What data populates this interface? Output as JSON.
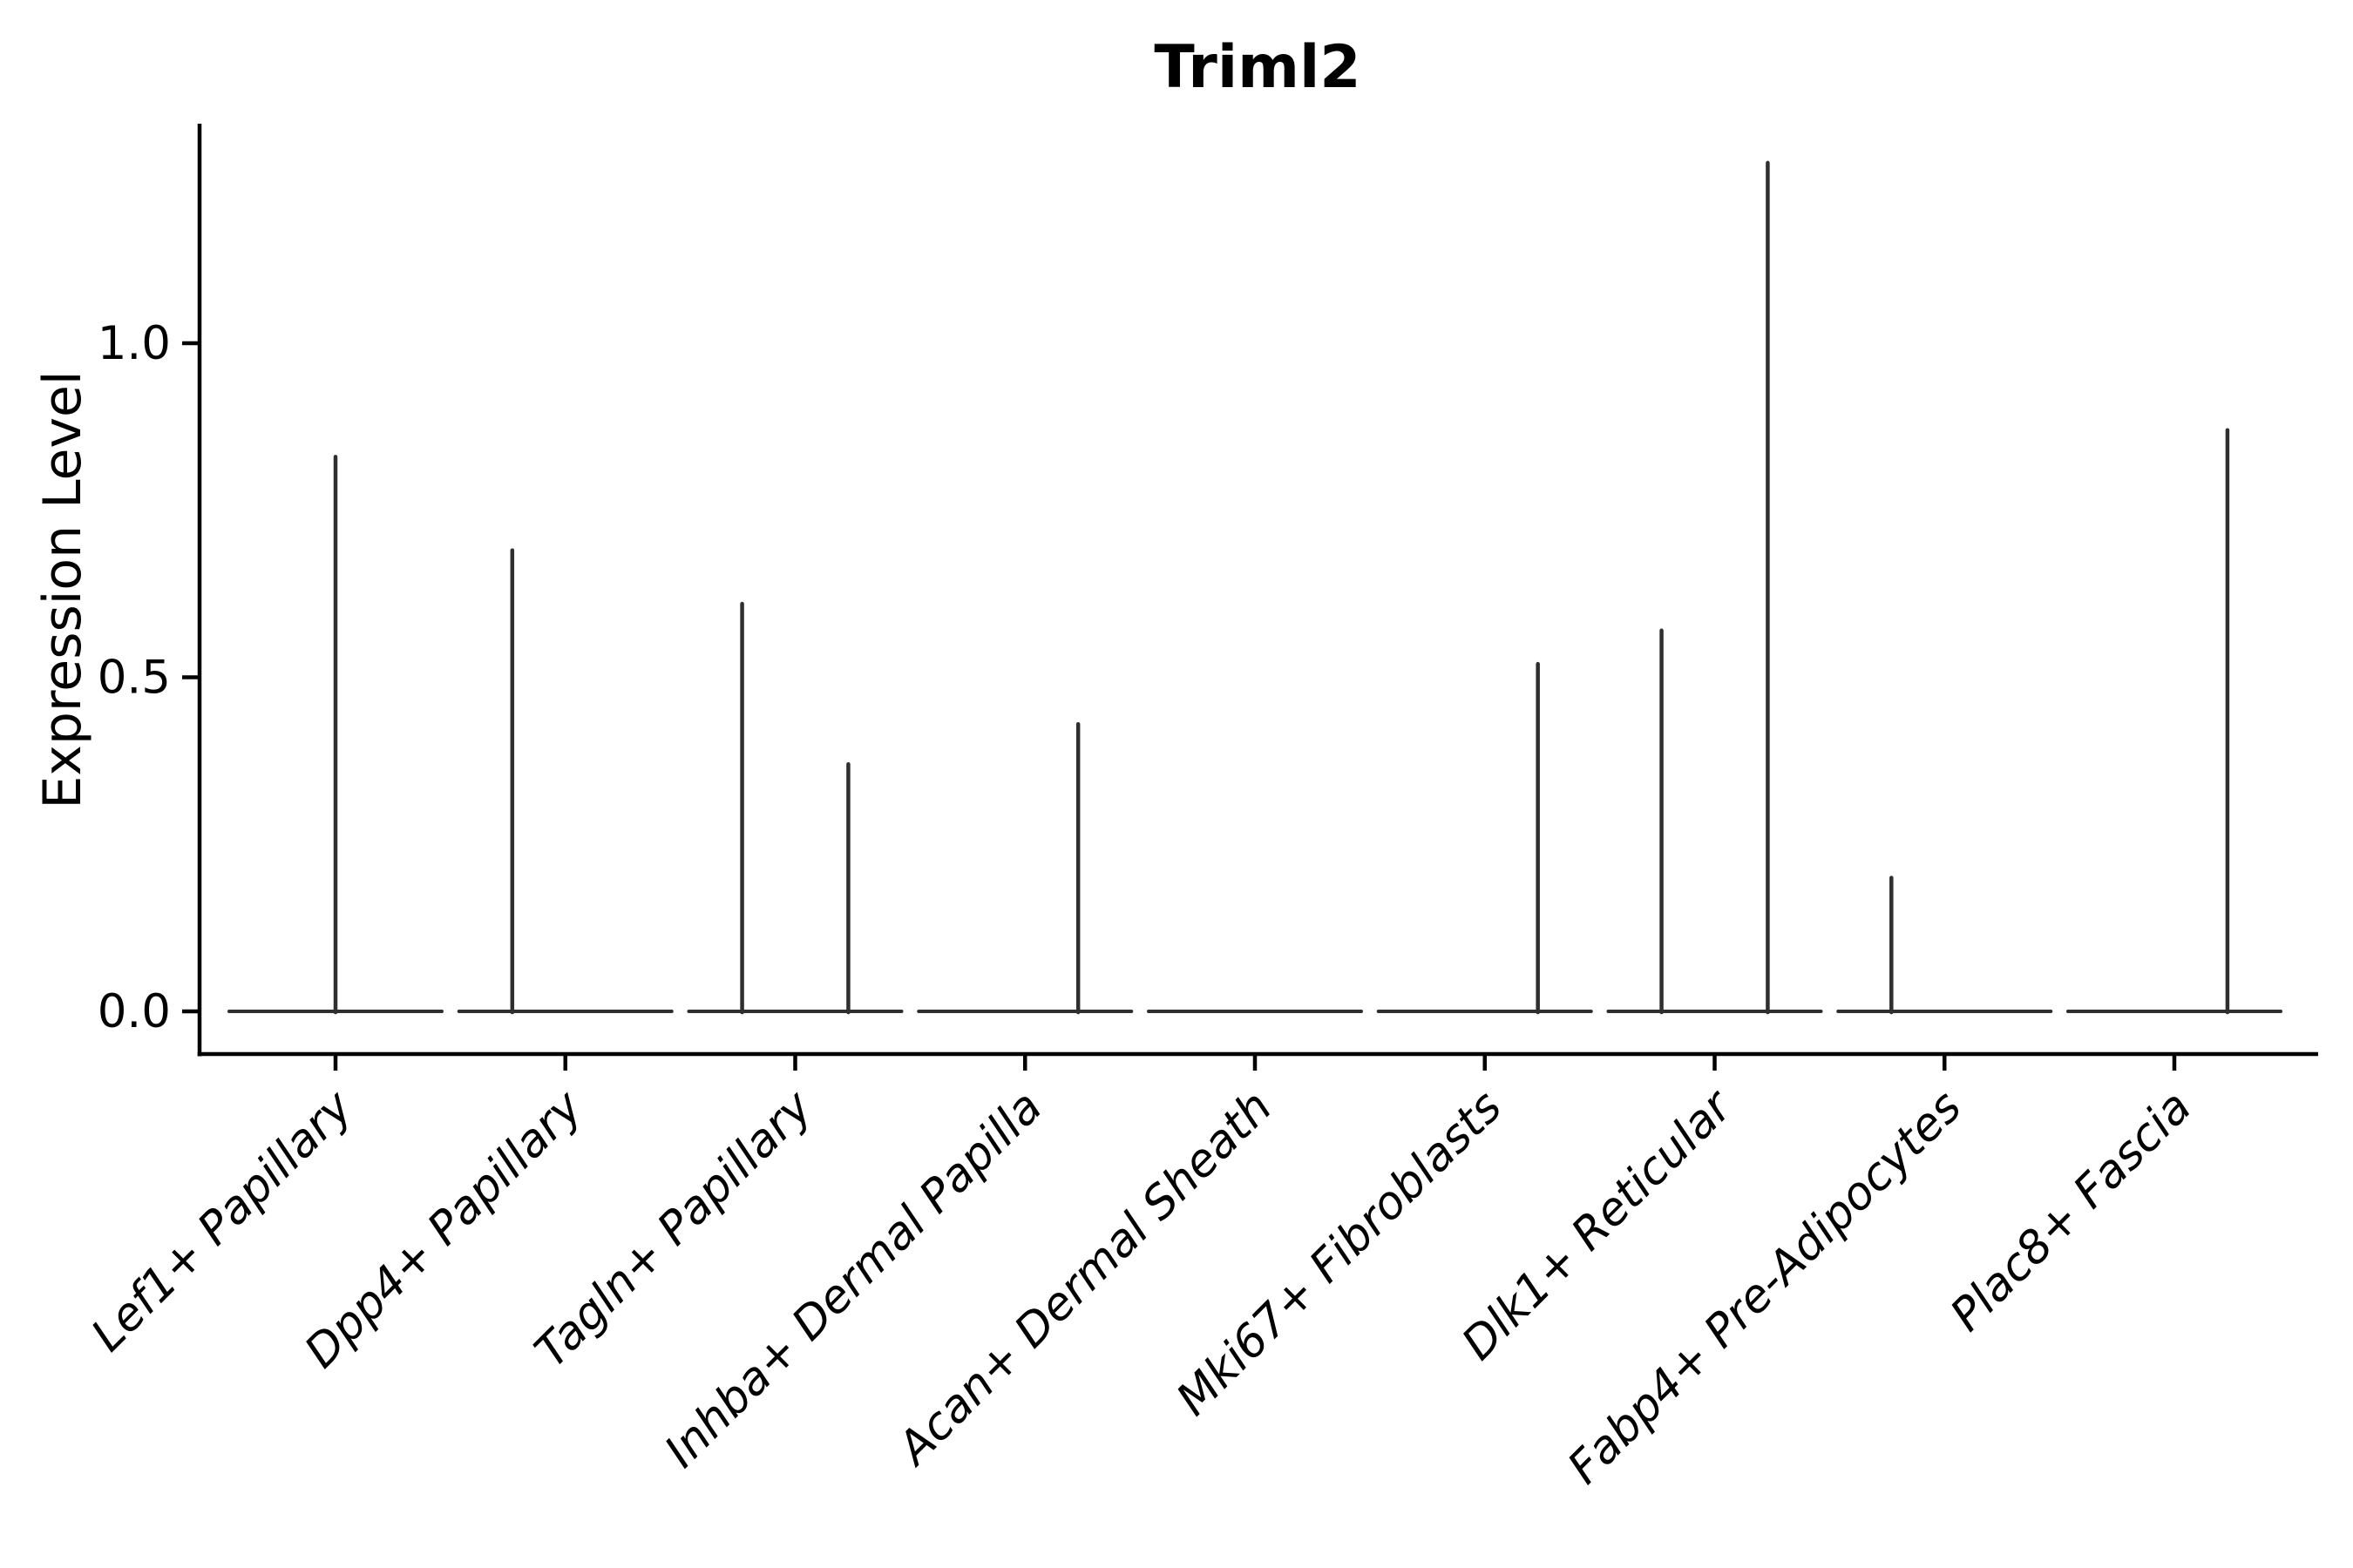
{
  "chart_data": {
    "type": "violin",
    "title": "Triml2",
    "xlabel": "",
    "ylabel": "Expression Level",
    "yticks": [
      {
        "label": "0.0",
        "value": 0.0
      },
      {
        "label": "0.5",
        "value": 0.5
      },
      {
        "label": "1.0",
        "value": 1.0
      }
    ],
    "ylim": [
      -0.06,
      1.33
    ],
    "grid": false,
    "legend": "none",
    "categories": [
      "Lef1+ Papillary",
      "Dpp4+ Papillary",
      "Tagln+ Papillary",
      "Inhba+ Dermal Papilla",
      "Acan+ Dermal Sheath",
      "Mki67+ Fibroblasts",
      "Dlk1+ Reticular",
      "Fabp4+ Pre-Adipocytes",
      "Plac8+ Fascia"
    ],
    "violins": [
      {
        "category": "Lef1+ Papillary",
        "baseline_value": 0,
        "spikes": [
          {
            "pos": 0,
            "max": 0.83
          }
        ]
      },
      {
        "category": "Dpp4+ Papillary",
        "baseline_value": 0,
        "spikes": [
          {
            "pos": -0.231,
            "max": 0.69
          }
        ]
      },
      {
        "category": "Tagln+ Papillary",
        "baseline_value": 0,
        "spikes": [
          {
            "pos": -0.231,
            "max": 0.61
          },
          {
            "pos": 0.231,
            "max": 0.37
          }
        ]
      },
      {
        "category": "Inhba+ Dermal Papilla",
        "baseline_value": 0,
        "spikes": [
          {
            "pos": 0.231,
            "max": 0.43
          }
        ]
      },
      {
        "category": "Acan+ Dermal Sheath",
        "baseline_value": 0,
        "spikes": []
      },
      {
        "category": "Mki67+ Fibroblasts",
        "baseline_value": 0,
        "spikes": [
          {
            "pos": 0.231,
            "max": 0.52
          }
        ]
      },
      {
        "category": "Dlk1+ Reticular",
        "baseline_value": 0,
        "spikes": [
          {
            "pos": -0.231,
            "max": 0.57
          },
          {
            "pos": 0.231,
            "max": 1.27
          }
        ]
      },
      {
        "category": "Fabp4+ Pre-Adipocytes",
        "baseline_value": 0,
        "spikes": [
          {
            "pos": -0.231,
            "max": 0.2
          }
        ]
      },
      {
        "category": "Plac8+ Fascia",
        "baseline_value": 0,
        "spikes": [
          {
            "pos": 0.231,
            "max": 0.87
          }
        ]
      }
    ],
    "colors": {
      "violin_stroke": "#2f2f2f",
      "axis": "#000000",
      "background": "#ffffff"
    }
  }
}
